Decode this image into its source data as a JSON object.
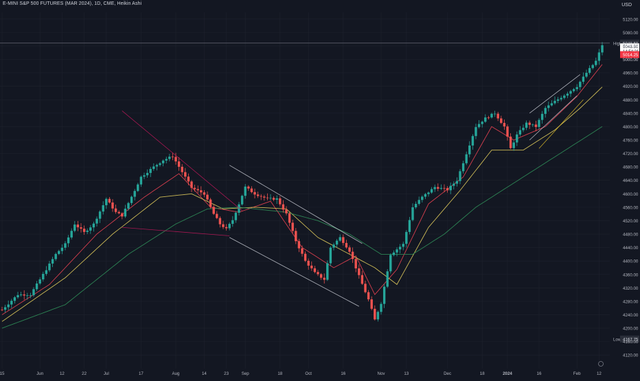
{
  "header": {
    "title": "E-MINI S&P 500 FUTURES (MAR 2024), 1D, CME, Heikin Ashi",
    "currency": "USD"
  },
  "colors": {
    "background": "#131722",
    "up": "#26a69a",
    "down": "#ef5350",
    "ma_fast": "#e04050",
    "ma_mid": "#d8c45a",
    "ma_slow": "#2e8b57",
    "trendline_pink": "#c2185b",
    "trendline_white": "#d1d4dc",
    "trendline_yellow": "#e6c229",
    "grid": "#1e222d",
    "axis_text": "#b2b5be"
  },
  "chart_data": {
    "type": "candlestick",
    "chart_style": "Heikin Ashi",
    "ylim": [
      4100,
      5140
    ],
    "y_ticks": [
      "5120.00",
      "5080.00",
      "5040.00",
      "5000.00",
      "4960.00",
      "4920.00",
      "4880.00",
      "4840.00",
      "4800.00",
      "4760.00",
      "4720.00",
      "4680.00",
      "4640.00",
      "4600.00",
      "4560.00",
      "4520.00",
      "4480.00",
      "4440.00",
      "4400.00",
      "4360.00",
      "4320.00",
      "4280.00",
      "4240.00",
      "4200.00",
      "4160.00",
      "4120.00"
    ],
    "x_ticks": [
      {
        "label": "15",
        "idx": 0
      },
      {
        "label": "Jun",
        "idx": 12
      },
      {
        "label": "12",
        "idx": 19
      },
      {
        "label": "22",
        "idx": 26
      },
      {
        "label": "Jul",
        "idx": 33
      },
      {
        "label": "17",
        "idx": 44
      },
      {
        "label": "Aug",
        "idx": 55
      },
      {
        "label": "14",
        "idx": 64
      },
      {
        "label": "23",
        "idx": 71
      },
      {
        "label": "Sep",
        "idx": 77
      },
      {
        "label": "18",
        "idx": 88
      },
      {
        "label": "Oct",
        "idx": 97
      },
      {
        "label": "16",
        "idx": 108
      },
      {
        "label": "Nov",
        "idx": 120
      },
      {
        "label": "13",
        "idx": 128
      },
      {
        "label": "Dec",
        "idx": 141
      },
      {
        "label": "18",
        "idx": 152
      },
      {
        "label": "2024",
        "idx": 160
      },
      {
        "label": "16",
        "idx": 170
      },
      {
        "label": "Feb",
        "idx": 182
      },
      {
        "label": "12",
        "idx": 189
      }
    ],
    "price_markers": {
      "high_label": "High",
      "high_value": "5048.50",
      "low_label": "Low",
      "low_value": "4167.75",
      "current_price": "5043.50",
      "countdown": "14:54:21",
      "red_label": "5014.25",
      "grey_label": "5000.00"
    },
    "close_path": [
      [
        0,
        4255
      ],
      [
        5,
        4300
      ],
      [
        9,
        4300
      ],
      [
        13,
        4360
      ],
      [
        17,
        4420
      ],
      [
        20,
        4450
      ],
      [
        23,
        4510
      ],
      [
        26,
        4485
      ],
      [
        29,
        4510
      ],
      [
        33,
        4585
      ],
      [
        36,
        4545
      ],
      [
        38,
        4535
      ],
      [
        42,
        4610
      ],
      [
        44,
        4650
      ],
      [
        48,
        4680
      ],
      [
        51,
        4700
      ],
      [
        54,
        4712
      ],
      [
        57,
        4665
      ],
      [
        60,
        4618
      ],
      [
        64,
        4600
      ],
      [
        67,
        4540
      ],
      [
        69,
        4510
      ],
      [
        71,
        4495
      ],
      [
        73,
        4522
      ],
      [
        75,
        4570
      ],
      [
        77,
        4620
      ],
      [
        80,
        4600
      ],
      [
        84,
        4585
      ],
      [
        87,
        4585
      ],
      [
        90,
        4540
      ],
      [
        93,
        4460
      ],
      [
        96,
        4400
      ],
      [
        99,
        4365
      ],
      [
        102,
        4345
      ],
      [
        104,
        4440
      ],
      [
        107,
        4470
      ],
      [
        110,
        4430
      ],
      [
        113,
        4355
      ],
      [
        116,
        4285
      ],
      [
        118,
        4225
      ],
      [
        120,
        4275
      ],
      [
        123,
        4420
      ],
      [
        127,
        4450
      ],
      [
        130,
        4560
      ],
      [
        133,
        4590
      ],
      [
        137,
        4620
      ],
      [
        141,
        4612
      ],
      [
        144,
        4640
      ],
      [
        147,
        4720
      ],
      [
        150,
        4800
      ],
      [
        153,
        4825
      ],
      [
        156,
        4840
      ],
      [
        159,
        4800
      ],
      [
        161,
        4735
      ],
      [
        163,
        4775
      ],
      [
        166,
        4810
      ],
      [
        169,
        4800
      ],
      [
        172,
        4855
      ],
      [
        175,
        4875
      ],
      [
        179,
        4900
      ],
      [
        182,
        4920
      ],
      [
        185,
        4960
      ],
      [
        188,
        4995
      ],
      [
        190,
        5043
      ]
    ],
    "moving_averages": [
      {
        "name": "",
        "color": "#e04050",
        "points": [
          [
            0,
            4240
          ],
          [
            15,
            4330
          ],
          [
            30,
            4480
          ],
          [
            45,
            4590
          ],
          [
            56,
            4660
          ],
          [
            66,
            4560
          ],
          [
            75,
            4545
          ],
          [
            85,
            4578
          ],
          [
            95,
            4440
          ],
          [
            105,
            4380
          ],
          [
            112,
            4415
          ],
          [
            118,
            4300
          ],
          [
            125,
            4375
          ],
          [
            135,
            4570
          ],
          [
            146,
            4650
          ],
          [
            155,
            4800
          ],
          [
            162,
            4760
          ],
          [
            172,
            4800
          ],
          [
            182,
            4890
          ],
          [
            190,
            4985
          ]
        ]
      },
      {
        "name": "",
        "color": "#d8c45a",
        "points": [
          [
            0,
            4220
          ],
          [
            20,
            4350
          ],
          [
            35,
            4480
          ],
          [
            50,
            4590
          ],
          [
            60,
            4600
          ],
          [
            70,
            4555
          ],
          [
            80,
            4560
          ],
          [
            90,
            4555
          ],
          [
            100,
            4470
          ],
          [
            110,
            4420
          ],
          [
            118,
            4380
          ],
          [
            125,
            4330
          ],
          [
            135,
            4500
          ],
          [
            145,
            4610
          ],
          [
            155,
            4730
          ],
          [
            165,
            4730
          ],
          [
            175,
            4790
          ],
          [
            183,
            4855
          ],
          [
            190,
            4918
          ]
        ]
      },
      {
        "name": "",
        "color": "#2e8b57",
        "points": [
          [
            0,
            4200
          ],
          [
            20,
            4270
          ],
          [
            40,
            4420
          ],
          [
            55,
            4510
          ],
          [
            65,
            4555
          ],
          [
            75,
            4560
          ],
          [
            90,
            4545
          ],
          [
            100,
            4520
          ],
          [
            110,
            4480
          ],
          [
            120,
            4420
          ],
          [
            130,
            4420
          ],
          [
            140,
            4480
          ],
          [
            150,
            4560
          ],
          [
            160,
            4620
          ],
          [
            170,
            4680
          ],
          [
            180,
            4740
          ],
          [
            190,
            4800
          ]
        ]
      }
    ],
    "trend_lines": [
      {
        "color": "#c2185b",
        "points": [
          [
            38,
            4847
          ],
          [
            76,
            4550
          ]
        ]
      },
      {
        "color": "#c2185b",
        "points": [
          [
            38,
            4500
          ],
          [
            72,
            4475
          ]
        ]
      },
      {
        "color": "#d1d4dc",
        "points": [
          [
            72,
            4685
          ],
          [
            114,
            4452
          ]
        ]
      },
      {
        "color": "#d1d4dc",
        "points": [
          [
            72,
            4470
          ],
          [
            113,
            4265
          ]
        ]
      },
      {
        "color": "#d1d4dc",
        "points": [
          [
            167,
            4840
          ],
          [
            183,
            4955
          ]
        ]
      },
      {
        "color": "#d1d4dc",
        "points": [
          [
            167,
            4760
          ],
          [
            182,
            4892
          ]
        ]
      },
      {
        "color": "#e6c229",
        "points": [
          [
            170,
            4735
          ],
          [
            184,
            4880
          ]
        ]
      }
    ]
  }
}
